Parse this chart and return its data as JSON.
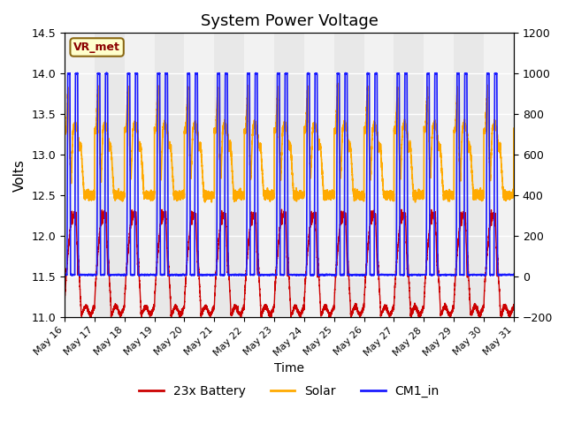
{
  "title": "System Power Voltage",
  "xlabel": "Time",
  "ylabel": "Volts",
  "xlim_start": 0,
  "xlim_end": 15,
  "ylim_left": [
    11.0,
    14.5
  ],
  "ylim_right": [
    -200,
    1200
  ],
  "xtick_labels": [
    "May 16",
    "May 17",
    "May 18",
    "May 19",
    "May 20",
    "May 21",
    "May 22",
    "May 23",
    "May 24",
    "May 25",
    "May 26",
    "May 27",
    "May 28",
    "May 29",
    "May 30",
    "May 31"
  ],
  "yticks_left": [
    11.0,
    11.5,
    12.0,
    12.5,
    13.0,
    13.5,
    14.0,
    14.5
  ],
  "yticks_right": [
    -200,
    0,
    200,
    400,
    600,
    800,
    1000,
    1200
  ],
  "legend_labels": [
    "23x Battery",
    "Solar",
    "CM1_in"
  ],
  "legend_colors": [
    "#cc0000",
    "#ffaa00",
    "#1a1aff"
  ],
  "bg_color_light": "#e8e8e8",
  "bg_color_dark": "#d0d0d0",
  "grid_color": "#ffffff",
  "annotation_text": "VR_met",
  "annotation_color": "#8b0000",
  "annotation_bg": "#ffffcc",
  "annotation_border": "#8b6914"
}
